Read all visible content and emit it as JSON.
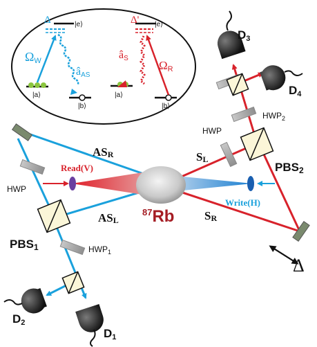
{
  "level_scheme_left": {
    "delta": "Δ",
    "state_e": "|e⟩",
    "omega_main": "Ω",
    "omega_sub": "W",
    "a_hat": "â",
    "a_sub": "AS",
    "state_a": "|a⟩",
    "state_b": "|b⟩"
  },
  "level_scheme_right": {
    "delta": "Δ'",
    "state_e": "|e⟩",
    "a_hat": "â",
    "a_sub": "S",
    "omega_main": "Ω",
    "omega_sub": "R",
    "state_a": "|a⟩",
    "state_b": "|b⟩"
  },
  "detectors": {
    "d1": {
      "main": "D",
      "sub": "1"
    },
    "d2": {
      "main": "D",
      "sub": "2"
    },
    "d3": {
      "main": "D",
      "sub": "3"
    },
    "d4": {
      "main": "D",
      "sub": "4"
    }
  },
  "optics": {
    "hwp_top": {
      "main": "HWP",
      "sub": "2"
    },
    "hwp_right": "HWP",
    "hwp_left": "HWP",
    "hwp_bottom": {
      "main": "HWP",
      "sub": "1"
    },
    "pbs_right": {
      "main": "PBS",
      "sub": "2"
    },
    "pbs_left": {
      "main": "PBS",
      "sub": "1"
    }
  },
  "beams": {
    "as_r": {
      "main": "AS",
      "sub": "R"
    },
    "as_l": {
      "main": "AS",
      "sub": "L"
    },
    "s_l": {
      "main": "S",
      "sub": "L"
    },
    "s_r": {
      "main": "S",
      "sub": "R"
    },
    "read": "Read(V)",
    "write": "Write(H)"
  },
  "atoms": {
    "mass": "87",
    "element": "Rb"
  },
  "delta_stage": "Δ",
  "colors": {
    "blue": "#1aa1dc",
    "red": "#d8222b",
    "darkred": "#a51d24",
    "green": "#8bc53f",
    "pbs_fill": "#fbf6d8"
  }
}
